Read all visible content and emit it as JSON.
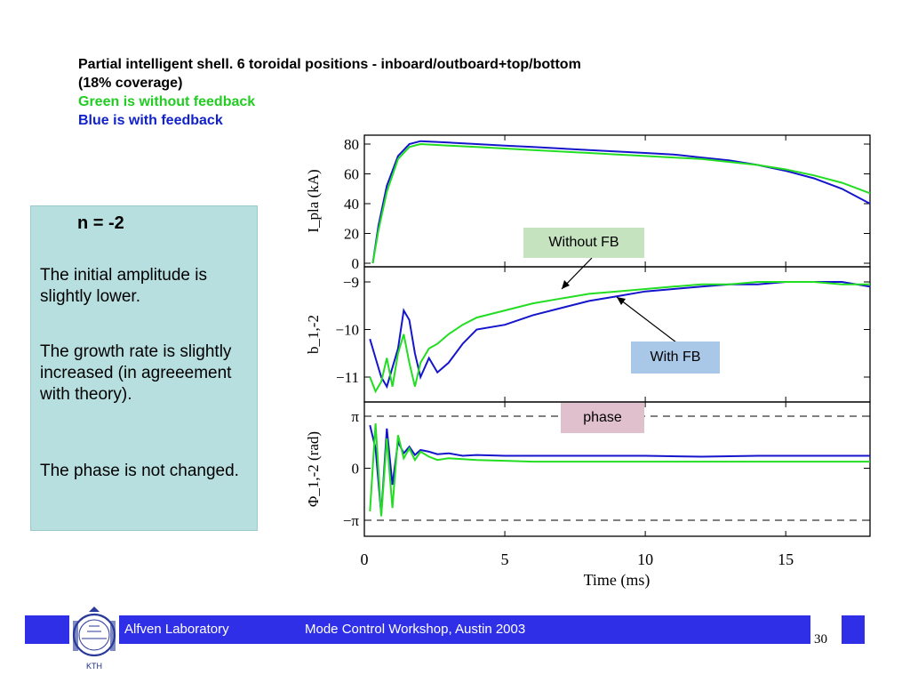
{
  "title": {
    "line1": "Partial intelligent shell.  6 toroidal positions - inboard/outboard+top/bottom",
    "line2": "(18% coverage)",
    "line3": "Green is without feedback",
    "line4": "Blue is with feedback"
  },
  "notes": {
    "heading": "n = -2",
    "p1": "The initial amplitude is slightly lower.",
    "p2": "The growth rate is slightly increased (in agreeement with theory).",
    "p3": "The phase is not changed."
  },
  "callouts": {
    "without_fb": "Without FB",
    "with_fb": "With FB",
    "phase": "phase"
  },
  "colors": {
    "green": "#22dd22",
    "blue": "#1515cc",
    "callout_green": "#c6e3c0",
    "callout_blue": "#a9c8e8",
    "callout_pink": "#e0c0cc",
    "footer": "#2f2fe8"
  },
  "footer": {
    "lab": "Alfven Laboratory",
    "workshop": "Mode Control Workshop, Austin 2003",
    "page": "30",
    "logo_text": "KTH",
    "logo_seal_text": "VETENSKAP OCH KONST"
  },
  "chart_data": [
    {
      "type": "line",
      "panel": "top",
      "ylabel": "I_pla (kA)",
      "ylim": [
        0,
        85
      ],
      "yticks": [
        "0",
        "20",
        "40",
        "60",
        "80"
      ],
      "xlim": [
        0,
        18
      ],
      "series": [
        {
          "color": "blue",
          "x": [
            0.3,
            0.5,
            0.8,
            1.2,
            1.6,
            2.0,
            3,
            4,
            5,
            6,
            7,
            8,
            9,
            10,
            11,
            12,
            13,
            14,
            15,
            16,
            17,
            18
          ],
          "y": [
            0,
            25,
            52,
            72,
            80,
            82,
            81,
            80,
            79,
            78,
            77,
            76,
            75,
            74,
            73,
            71,
            69,
            66,
            62,
            57,
            50,
            40
          ]
        },
        {
          "color": "green",
          "x": [
            0.3,
            0.5,
            0.8,
            1.2,
            1.6,
            2.0,
            3,
            4,
            5,
            6,
            7,
            8,
            9,
            10,
            11,
            12,
            13,
            14,
            15,
            16,
            17,
            18
          ],
          "y": [
            0,
            22,
            48,
            70,
            78,
            80,
            79,
            78,
            77,
            76,
            75,
            74,
            73,
            72,
            71,
            70,
            68,
            66,
            63,
            59,
            54,
            47
          ]
        }
      ]
    },
    {
      "type": "line",
      "panel": "middle",
      "ylabel": "b_1,-2",
      "ylim": [
        -11.5,
        -8.8
      ],
      "yticks": [
        "-9",
        "-10",
        "-11"
      ],
      "xlim": [
        0,
        18
      ],
      "series": [
        {
          "color": "blue",
          "x": [
            0.2,
            0.4,
            0.6,
            0.8,
            1.0,
            1.2,
            1.4,
            1.6,
            1.8,
            2.0,
            2.3,
            2.6,
            3,
            3.5,
            4,
            5,
            6,
            7,
            8,
            9,
            10,
            11,
            12,
            13,
            14,
            15,
            16,
            17,
            18
          ],
          "y": [
            -10.2,
            -10.6,
            -11.0,
            -11.2,
            -10.8,
            -10.4,
            -9.6,
            -9.8,
            -10.5,
            -11.0,
            -10.6,
            -10.9,
            -10.7,
            -10.3,
            -10.0,
            -9.9,
            -9.7,
            -9.55,
            -9.4,
            -9.3,
            -9.2,
            -9.15,
            -9.1,
            -9.05,
            -9.05,
            -9.0,
            -9.0,
            -9.0,
            -9.1
          ]
        },
        {
          "color": "green",
          "x": [
            0.2,
            0.4,
            0.6,
            0.8,
            1.0,
            1.2,
            1.4,
            1.6,
            1.8,
            2.0,
            2.3,
            2.6,
            3,
            3.5,
            4,
            5,
            6,
            7,
            8,
            9,
            10,
            11,
            12,
            13,
            14,
            15,
            16,
            17,
            18
          ],
          "y": [
            -11.0,
            -11.3,
            -11.1,
            -10.6,
            -11.2,
            -10.5,
            -10.1,
            -10.7,
            -11.2,
            -10.7,
            -10.4,
            -10.3,
            -10.1,
            -9.9,
            -9.75,
            -9.6,
            -9.45,
            -9.35,
            -9.25,
            -9.2,
            -9.15,
            -9.1,
            -9.05,
            -9.05,
            -9.0,
            -9.0,
            -9.0,
            -9.05,
            -9.05
          ]
        }
      ]
    },
    {
      "type": "line",
      "panel": "bottom",
      "ylabel": "Φ_1,-2 (rad)",
      "ylim": [
        -3.6,
        3.6
      ],
      "yticks": [
        "π",
        "0",
        "-π"
      ],
      "reference_lines": [
        3.14159,
        -3.14159
      ],
      "xlim": [
        0,
        18
      ],
      "xticks": [
        "0",
        "5",
        "10",
        "15"
      ],
      "xlabel": "Time (ms)",
      "series": [
        {
          "color": "blue",
          "x": [
            0.2,
            0.4,
            0.6,
            0.8,
            1.0,
            1.2,
            1.4,
            1.6,
            1.8,
            2.0,
            2.3,
            2.6,
            3,
            3.5,
            4,
            5,
            6,
            8,
            10,
            12,
            14,
            16,
            18
          ],
          "y": [
            2.6,
            1.2,
            -2.8,
            2.4,
            -1.0,
            1.6,
            0.9,
            1.3,
            0.8,
            1.1,
            1.0,
            0.85,
            0.9,
            0.75,
            0.8,
            0.75,
            0.75,
            0.75,
            0.75,
            0.7,
            0.75,
            0.75,
            0.75
          ]
        },
        {
          "color": "green",
          "x": [
            0.2,
            0.4,
            0.6,
            0.8,
            1.0,
            1.2,
            1.4,
            1.6,
            1.8,
            2.0,
            2.3,
            2.6,
            3,
            3.5,
            4,
            5,
            6,
            8,
            10,
            12,
            14,
            16,
            18
          ],
          "y": [
            -2.6,
            2.7,
            -2.9,
            1.8,
            -2.4,
            2.0,
            0.6,
            1.2,
            0.5,
            1.0,
            0.7,
            0.5,
            0.6,
            0.55,
            0.5,
            0.45,
            0.4,
            0.4,
            0.4,
            0.4,
            0.4,
            0.4,
            0.4
          ]
        }
      ]
    }
  ]
}
